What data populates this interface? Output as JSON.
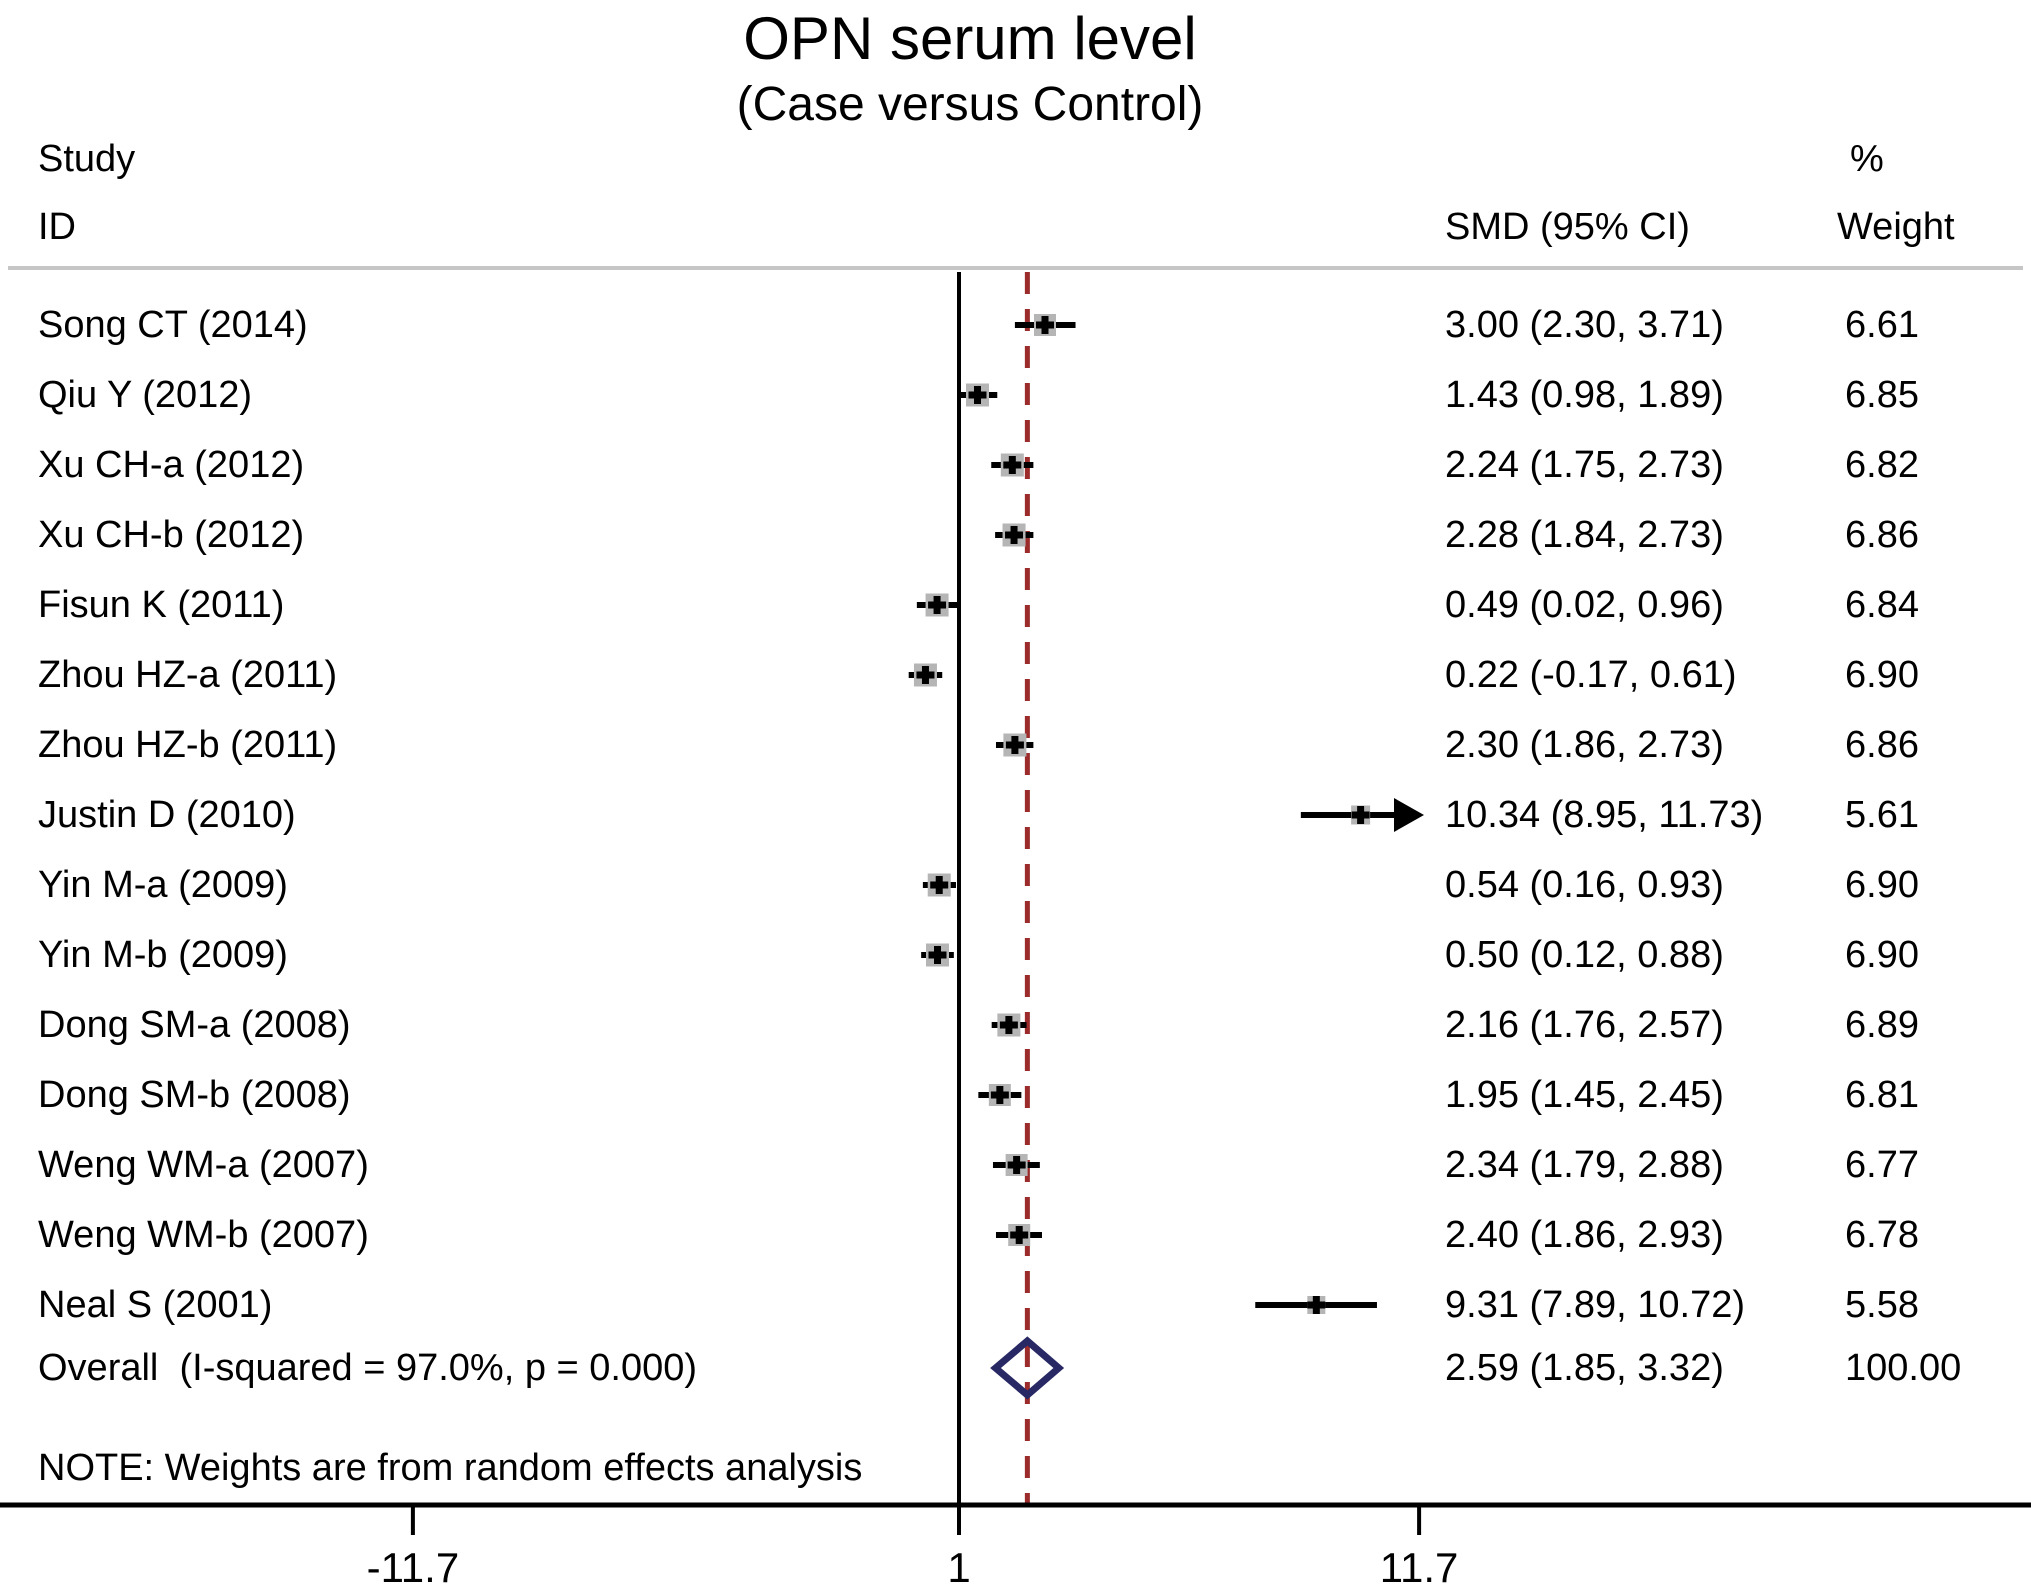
{
  "colors": {
    "text": "#000000",
    "ci_line": "#000000",
    "point_marker": "#000000",
    "weight_box": "#b5b5b5",
    "dashed_line": "#9c2b2b",
    "diamond_outline": "#282865",
    "separator_line": "#c6c6c6",
    "axis_line": "#000000"
  },
  "chart_data": {
    "type": "forest",
    "title": "OPN serum level",
    "subtitle": "(Case versus Control)",
    "columns": {
      "study_header_line1": "Study",
      "study_header_line2": "ID",
      "smd_header": "SMD (95% CI)",
      "weight_header_line1": "%",
      "weight_header_line2": "Weight"
    },
    "studies": [
      {
        "id": "Song CT (2014)",
        "smd": 3.0,
        "lo": 2.3,
        "hi": 3.71,
        "weight": 6.61,
        "smd_text": "3.00 (2.30, 3.71)",
        "weight_text": "6.61",
        "arrow_right": false
      },
      {
        "id": "Qiu Y (2012)",
        "smd": 1.43,
        "lo": 0.98,
        "hi": 1.89,
        "weight": 6.85,
        "smd_text": "1.43 (0.98, 1.89)",
        "weight_text": "6.85",
        "arrow_right": false
      },
      {
        "id": "Xu CH-a (2012)",
        "smd": 2.24,
        "lo": 1.75,
        "hi": 2.73,
        "weight": 6.82,
        "smd_text": "2.24 (1.75, 2.73)",
        "weight_text": "6.82",
        "arrow_right": false
      },
      {
        "id": "Xu CH-b (2012)",
        "smd": 2.28,
        "lo": 1.84,
        "hi": 2.73,
        "weight": 6.86,
        "smd_text": "2.28 (1.84, 2.73)",
        "weight_text": "6.86",
        "arrow_right": false
      },
      {
        "id": "Fisun K (2011)",
        "smd": 0.49,
        "lo": 0.02,
        "hi": 0.96,
        "weight": 6.84,
        "smd_text": "0.49 (0.02, 0.96)",
        "weight_text": "6.84",
        "arrow_right": false
      },
      {
        "id": "Zhou HZ-a (2011)",
        "smd": 0.22,
        "lo": -0.17,
        "hi": 0.61,
        "weight": 6.9,
        "smd_text": "0.22 (-0.17, 0.61)",
        "weight_text": "6.90",
        "arrow_right": false
      },
      {
        "id": "Zhou HZ-b (2011)",
        "smd": 2.3,
        "lo": 1.86,
        "hi": 2.73,
        "weight": 6.86,
        "smd_text": "2.30 (1.86, 2.73)",
        "weight_text": "6.86",
        "arrow_right": false
      },
      {
        "id": "Justin D (2010)",
        "smd": 10.34,
        "lo": 8.95,
        "hi": 11.73,
        "weight": 5.61,
        "smd_text": "10.34 (8.95, 11.73)",
        "weight_text": "5.61",
        "arrow_right": true
      },
      {
        "id": "Yin M-a (2009)",
        "smd": 0.54,
        "lo": 0.16,
        "hi": 0.93,
        "weight": 6.9,
        "smd_text": "0.54 (0.16, 0.93)",
        "weight_text": "6.90",
        "arrow_right": false
      },
      {
        "id": "Yin M-b (2009)",
        "smd": 0.5,
        "lo": 0.12,
        "hi": 0.88,
        "weight": 6.9,
        "smd_text": "0.50 (0.12, 0.88)",
        "weight_text": "6.90",
        "arrow_right": false
      },
      {
        "id": "Dong SM-a (2008)",
        "smd": 2.16,
        "lo": 1.76,
        "hi": 2.57,
        "weight": 6.89,
        "smd_text": "2.16 (1.76, 2.57)",
        "weight_text": "6.89",
        "arrow_right": false
      },
      {
        "id": "Dong SM-b (2008)",
        "smd": 1.95,
        "lo": 1.45,
        "hi": 2.45,
        "weight": 6.81,
        "smd_text": "1.95 (1.45, 2.45)",
        "weight_text": "6.81",
        "arrow_right": false
      },
      {
        "id": "Weng WM-a (2007)",
        "smd": 2.34,
        "lo": 1.79,
        "hi": 2.88,
        "weight": 6.77,
        "smd_text": "2.34 (1.79, 2.88)",
        "weight_text": "6.77",
        "arrow_right": false
      },
      {
        "id": "Weng WM-b (2007)",
        "smd": 2.4,
        "lo": 1.86,
        "hi": 2.93,
        "weight": 6.78,
        "smd_text": "2.40 (1.86, 2.93)",
        "weight_text": "6.78",
        "arrow_right": false
      },
      {
        "id": "Neal S (2001)",
        "smd": 9.31,
        "lo": 7.89,
        "hi": 10.72,
        "weight": 5.58,
        "smd_text": "9.31 (7.89, 10.72)",
        "weight_text": "5.58",
        "arrow_right": false
      }
    ],
    "overall": {
      "id": "Overall  (I-squared = 97.0%, p = 0.000)",
      "smd": 2.59,
      "lo": 1.85,
      "hi": 3.32,
      "smd_text": "2.59 (1.85, 3.32)",
      "weight_text": "100.00"
    },
    "note": "NOTE: Weights are from random effects analysis",
    "axis": {
      "tick_values": [
        -11.7,
        1,
        11.7
      ],
      "tick_labels": [
        "-11.7",
        "1",
        "11.7"
      ],
      "null_line_value": 1,
      "overall_line_value": 2.59,
      "scale": "linear"
    }
  }
}
